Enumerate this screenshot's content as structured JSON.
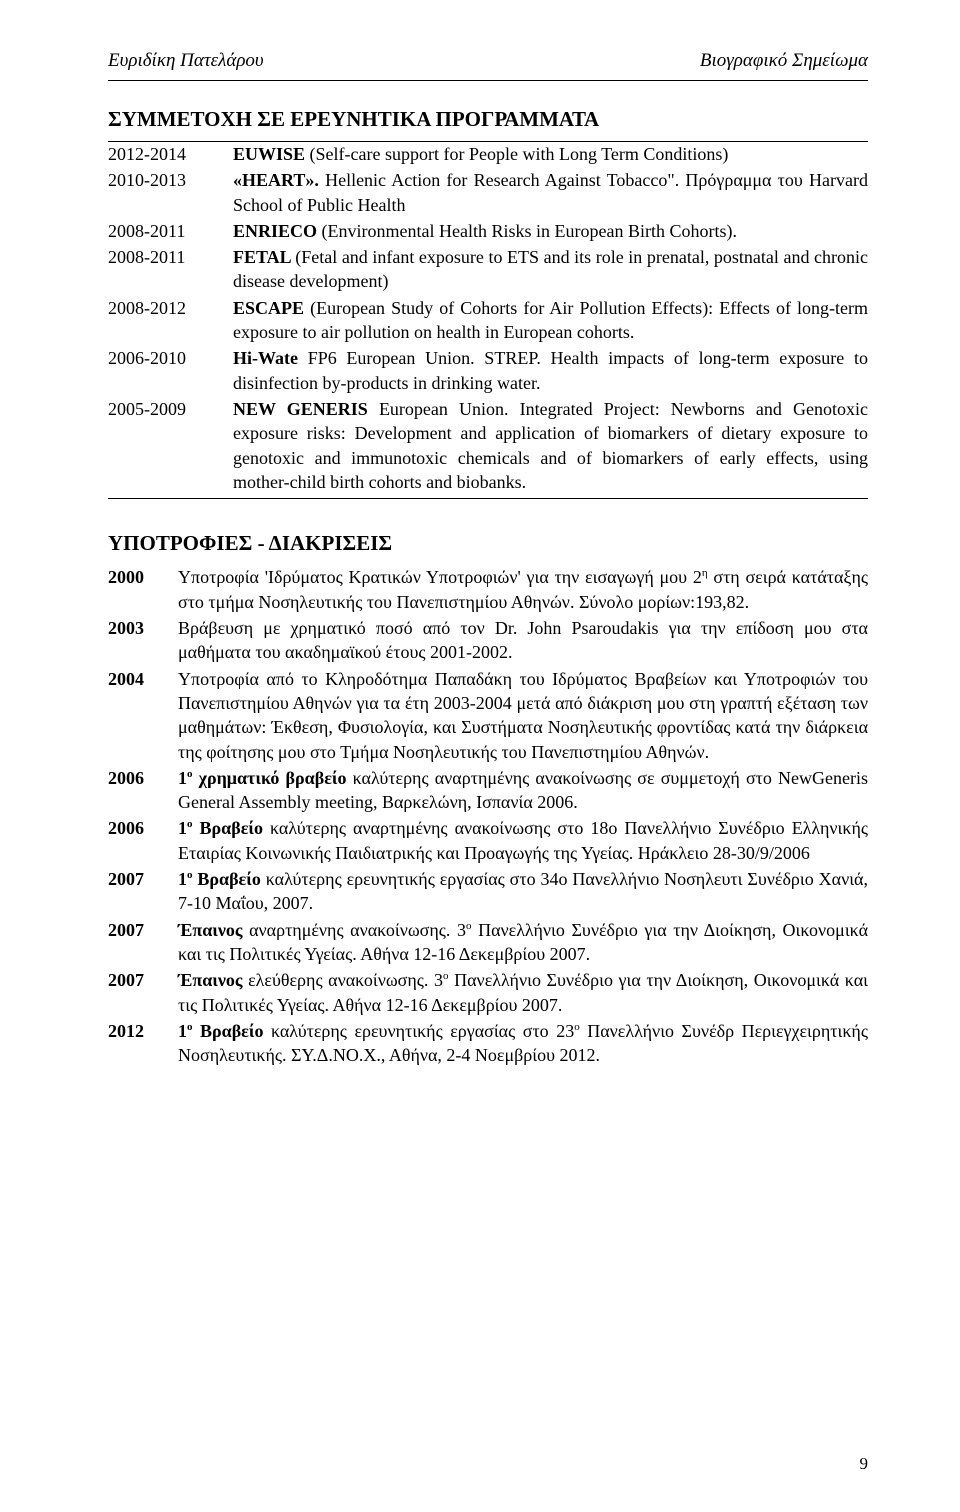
{
  "header": {
    "left": "Ευριδίκη  Πατελάρου",
    "right": "Βιογραφικό Σημείωμα"
  },
  "section1": {
    "title": "ΣΥΜΜΕΤΟΧΗ ΣΕ ΕΡΕΥΝΗΤΙΚΑ ΠΡΟΓΡΑΜΜΑΤΑ",
    "rows": [
      {
        "year": "2012-2014",
        "parts": [
          {
            "b": true,
            "t": "EUWISE "
          },
          {
            "b": false,
            "t": "(Self-care support for People with Long Term Conditions)"
          }
        ]
      },
      {
        "year": "2010-2013",
        "parts": [
          {
            "b": true,
            "t": "«HEART». "
          },
          {
            "b": false,
            "t": "Hellenic Action for Research Against Tobacco\". Πρόγραμμα του Harvard School of Public Health"
          }
        ]
      },
      {
        "year": "2008-2011",
        "parts": [
          {
            "b": true,
            "t": "ENRIECO "
          },
          {
            "b": false,
            "t": "(Environmental Health Risks in European Birth Cohorts)."
          }
        ]
      },
      {
        "year": "2008-2011",
        "parts": [
          {
            "b": true,
            "t": "FETAL "
          },
          {
            "b": false,
            "t": "(Fetal and infant exposure to ETS and its role in prenatal, postnatal and chronic disease development)"
          }
        ]
      },
      {
        "year": "2008-2012",
        "parts": [
          {
            "b": true,
            "t": "ESCAPE "
          },
          {
            "b": false,
            "t": "(European Study of Cohorts for Air Pollution Effects): Effects of long-term exposure to air pollution on health in European cohorts."
          }
        ]
      },
      {
        "year": "2006-2010",
        "parts": [
          {
            "b": true,
            "t": "Hi-Wate "
          },
          {
            "b": false,
            "t": "FP6 European Union. STREP. Health impacts of long-term  exposure to disinfection by-products in drinking water."
          }
        ]
      },
      {
        "year": "2005-2009",
        "parts": [
          {
            "b": true,
            "t": "NEW GENERIS "
          },
          {
            "b": false,
            "t": "European Union. Integrated Project: Newborns and Genotoxic exposure risks: Development and application of biomarkers of dietary exposure to genotoxic and immunotoxic chemicals and of biomarkers of early effects, using mother-child birth cohorts and biobanks."
          }
        ]
      }
    ]
  },
  "section2": {
    "title": "ΥΠΟΤΡΟΦΙΕΣ - ΔΙΑΚΡΙΣΕΙΣ",
    "rows": [
      {
        "year": "2000",
        "html": "Υποτροφία 'Ιδρύματος Κρατικών Υποτροφιών' για την εισαγωγή μου 2<sup>η</sup> στη σειρά κατάταξης στο τμήμα Νοσηλευτικής του Πανεπιστημίου Αθηνών. Σύνολο μορίων:193,82."
      },
      {
        "year": "2003",
        "html": "Βράβευση με χρηματικό ποσό από τον Dr. John Psaroudakis για την επίδοση μου στα μαθήματα του ακαδημαϊκού έτους 2001-2002."
      },
      {
        "year": "2004",
        "html": "Υποτροφία από το Κληροδότημα Παπαδάκη του Ιδρύματος Βραβείων και Υποτροφιών  του Πανεπιστημίου Αθηνών για τα έτη 2003-2004 μετά από  διάκριση μου στη γραπτή εξέταση των μαθημάτων: Έκθεση, Φυσιολογία, και Συστήματα Νοσηλευτικής φροντίδας κατά την διάρκεια της φοίτησης μου στο Τμήμα Νοσηλευτικής του Πανεπιστημίου Αθηνών."
      },
      {
        "year": "2006",
        "html": "<span class='b'>1<sup>ο</sup> χρηματικό βραβείο</span> καλύτερης αναρτημένης ανακοίνωσης σε συμμετοχή στο NewGeneris General Assembly meeting, Βαρκελώνη, Ισπανία 2006."
      },
      {
        "year": "2006",
        "html": "<span class='b'>1<sup>ο</sup> Βραβείο</span> καλύτερης αναρτημένης ανακοίνωσης στο 18ο Πανελλήνιο Συνέδριο Ελληνικής Εταιρίας Κοινωνικής Παιδιατρικής και Προαγωγής της Υγείας. Ηράκλειο 28-30/9/2006"
      },
      {
        "year": "2007",
        "html": "<span class='b'>1<sup>ο</sup> Βραβείο</span> καλύτερης ερευνητικής εργασίας στο 34ο Πανελλήνιο Νοσηλευτι Συνέδριο Χανιά, 7-10 Μαΐου, 2007."
      },
      {
        "year": "2007",
        "html": "<span class='b'>Έπαινος</span> αναρτημένης ανακοίνωσης. 3<sup>ο</sup> Πανελλήνιο Συνέδριο για την Διοίκηση, Οικονομικά και τις Πολιτικές Υγείας. Αθήνα 12-16 Δεκεμβρίου 2007."
      },
      {
        "year": "2007",
        "html": "<span class='b'>Έπαινος</span> ελεύθερης  ανακοίνωσης. 3<sup>ο</sup> Πανελλήνιο Συνέδριο για την Διοίκηση, Οικονομικά και τις Πολιτικές Υγείας. Αθήνα 12-16 Δεκεμβρίου 2007."
      },
      {
        "year": "2012",
        "html": "<span class='b'>1<sup>ο</sup> Βραβείο</span> καλύτερης ερευνητικής εργασίας στο 23<sup>ο</sup> Πανελλήνιο Συνέδρ Περιεγχειρητικής Νοσηλευτικής. ΣΥ.Δ.ΝΟ.Χ., Αθήνα, 2-4 Νοεμβρίου 2012."
      }
    ]
  },
  "pageNumber": "9"
}
